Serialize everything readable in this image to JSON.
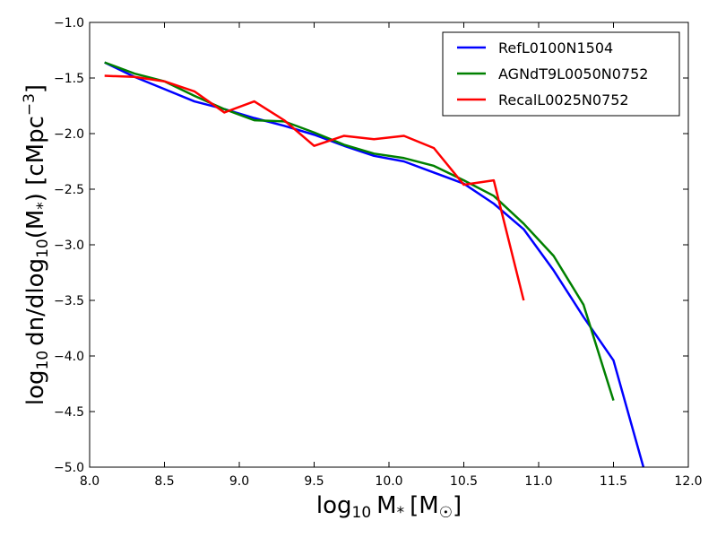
{
  "chart_data": {
    "type": "line",
    "title": "",
    "xlabel": {
      "prefix": "log",
      "prefix_sub": "10",
      "var": "M",
      "var_sub": "*",
      "unit_open": "[M",
      "unit_sub": "☉",
      "unit_close": "]"
    },
    "ylabel": {
      "p1": "log",
      "p1_sub": "10",
      "p2": "dn/dlog",
      "p2_sub": "10",
      "p3": "(M",
      "p3_sub": "*",
      "p4": ") [cMpc",
      "p4_sup": "−3",
      "p5": "]"
    },
    "xlim": [
      8.0,
      12.0
    ],
    "ylim": [
      -5.0,
      -1.0
    ],
    "x_ticks": [
      8.0,
      8.5,
      9.0,
      9.5,
      10.0,
      10.5,
      11.0,
      11.5,
      12.0
    ],
    "x_tick_labels": [
      "8.0",
      "8.5",
      "9.0",
      "9.5",
      "10.0",
      "10.5",
      "11.0",
      "11.5",
      "12.0"
    ],
    "y_ticks": [
      -1.0,
      -1.5,
      -2.0,
      -2.5,
      -3.0,
      -3.5,
      -4.0,
      -4.5,
      -5.0
    ],
    "y_tick_labels": [
      "−1.0",
      "−1.5",
      "−2.0",
      "−2.5",
      "−3.0",
      "−3.5",
      "−4.0",
      "−4.5",
      "−5.0"
    ],
    "grid": false,
    "legend_position": "top-right",
    "series": [
      {
        "name": "RefL0100N1504",
        "color": "#0000ff",
        "x": [
          8.1,
          8.3,
          8.5,
          8.7,
          8.9,
          9.1,
          9.3,
          9.5,
          9.7,
          9.9,
          10.1,
          10.3,
          10.5,
          10.7,
          10.9,
          11.1,
          11.3,
          11.5,
          11.7
        ],
        "y": [
          -1.36,
          -1.49,
          -1.6,
          -1.71,
          -1.78,
          -1.86,
          -1.93,
          -2.01,
          -2.11,
          -2.2,
          -2.25,
          -2.35,
          -2.45,
          -2.63,
          -2.86,
          -3.23,
          -3.65,
          -4.04,
          -5.0
        ]
      },
      {
        "name": "AGNdT9L0050N0752",
        "color": "#008000",
        "x": [
          8.1,
          8.3,
          8.5,
          8.7,
          8.9,
          9.1,
          9.3,
          9.5,
          9.7,
          9.9,
          10.1,
          10.3,
          10.5,
          10.7,
          10.9,
          11.1,
          11.3,
          11.5
        ],
        "y": [
          -1.36,
          -1.46,
          -1.53,
          -1.66,
          -1.78,
          -1.88,
          -1.89,
          -1.99,
          -2.1,
          -2.18,
          -2.22,
          -2.29,
          -2.42,
          -2.56,
          -2.81,
          -3.1,
          -3.54,
          -4.4
        ]
      },
      {
        "name": "RecalL0025N0752",
        "color": "#ff0000",
        "x": [
          8.1,
          8.3,
          8.5,
          8.7,
          8.9,
          9.1,
          9.3,
          9.5,
          9.7,
          9.9,
          10.1,
          10.3,
          10.5,
          10.7,
          10.9
        ],
        "y": [
          -1.48,
          -1.49,
          -1.53,
          -1.62,
          -1.81,
          -1.71,
          -1.88,
          -2.11,
          -2.02,
          -2.05,
          -2.02,
          -2.13,
          -2.46,
          -2.42,
          -3.5
        ]
      }
    ]
  }
}
